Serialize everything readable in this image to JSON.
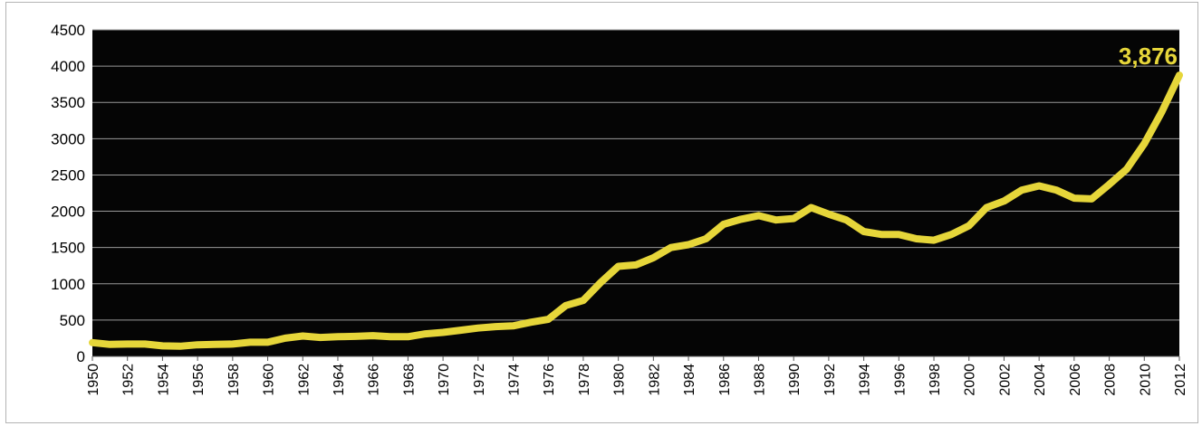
{
  "chart_data": {
    "type": "line",
    "x": [
      1950,
      1951,
      1952,
      1953,
      1954,
      1955,
      1956,
      1957,
      1958,
      1959,
      1960,
      1961,
      1962,
      1963,
      1964,
      1965,
      1966,
      1967,
      1968,
      1969,
      1970,
      1971,
      1972,
      1973,
      1974,
      1975,
      1976,
      1977,
      1978,
      1979,
      1980,
      1981,
      1982,
      1983,
      1984,
      1985,
      1986,
      1987,
      1988,
      1989,
      1990,
      1991,
      1992,
      1993,
      1994,
      1995,
      1996,
      1997,
      1998,
      1999,
      2000,
      2001,
      2002,
      2003,
      2004,
      2005,
      2006,
      2007,
      2008,
      2009,
      2010,
      2011,
      2012
    ],
    "values": [
      190,
      165,
      170,
      170,
      145,
      140,
      160,
      165,
      170,
      195,
      195,
      250,
      280,
      260,
      270,
      275,
      285,
      270,
      270,
      310,
      330,
      360,
      390,
      410,
      420,
      470,
      510,
      700,
      770,
      1020,
      1240,
      1260,
      1360,
      1500,
      1540,
      1620,
      1820,
      1890,
      1940,
      1880,
      1900,
      2050,
      1960,
      1880,
      1720,
      1680,
      1680,
      1620,
      1600,
      1680,
      1800,
      2050,
      2140,
      2290,
      2350,
      2290,
      2180,
      2170,
      2370,
      2580,
      2930,
      3370,
      3876
    ],
    "x_tick_labels": [
      "1950",
      "1952",
      "1954",
      "1956",
      "1958",
      "1960",
      "1962",
      "1964",
      "1966",
      "1968",
      "1970",
      "1972",
      "1974",
      "1976",
      "1978",
      "1980",
      "1982",
      "1984",
      "1986",
      "1988",
      "1990",
      "1992",
      "1994",
      "1996",
      "1998",
      "2000",
      "2002",
      "2004",
      "2006",
      "2008",
      "2010",
      "2012"
    ],
    "y_tick_labels": [
      "0",
      "500",
      "1000",
      "1500",
      "2000",
      "2500",
      "3000",
      "3500",
      "4000",
      "4500"
    ],
    "ylim": [
      0,
      4500
    ],
    "y_step": 500,
    "annotation": "3,876",
    "grid": true,
    "legend": "none",
    "colors": {
      "plot_background": "#050505",
      "line": "#e6d63a",
      "gridline": "#9a9a9a",
      "annotation": "#e6d63a",
      "axis_text": "#000000"
    }
  }
}
